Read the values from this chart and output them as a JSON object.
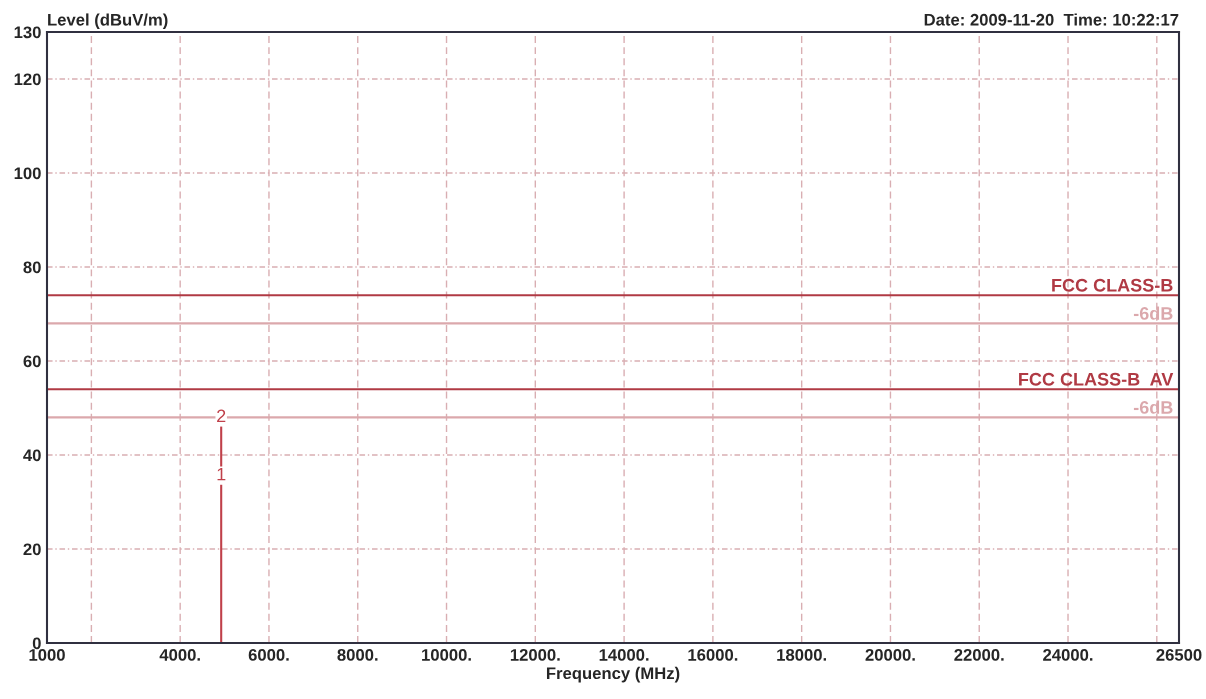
{
  "chart_data": {
    "type": "line",
    "ylabel": "Level (dBuV/m)",
    "xlabel": "Frequency (MHz)",
    "series": [
      {
        "color": "#c0404a",
        "x": [
          4924,
          4924
        ],
        "values": [
          0,
          46.2
        ]
      }
    ],
    "xlim": [
      1000,
      26500
    ],
    "ylim": [
      0,
      130
    ],
    "xticks": [
      1000,
      {
        "value": 2000,
        "label": null
      },
      {
        "value": 4000,
        "label": "4000."
      },
      {
        "value": 6000,
        "label": "6000."
      },
      {
        "value": 8000,
        "label": "8000."
      },
      {
        "value": 10000,
        "label": "10000."
      },
      {
        "value": 12000,
        "label": "12000."
      },
      {
        "value": 14000,
        "label": "14000."
      },
      {
        "value": 16000,
        "label": "16000."
      },
      {
        "value": 18000,
        "label": "18000."
      },
      {
        "value": 20000,
        "label": "20000."
      },
      {
        "value": 22000,
        "label": "22000."
      },
      {
        "value": 24000,
        "label": "24000."
      },
      {
        "value": 26000,
        "label": null
      },
      26500
    ],
    "yticks": [
      0,
      20,
      40,
      60,
      80,
      100,
      120,
      130
    ],
    "ref_lines": [
      {
        "axis": "y",
        "value": 74,
        "label": "FCC CLASS-B",
        "color": "#b03a44"
      },
      {
        "axis": "y",
        "value": 68,
        "label": "-6dB",
        "color": "#dba8ac"
      },
      {
        "axis": "y",
        "value": 54,
        "label": "FCC CLASS-B  AV",
        "color": "#b03a44"
      },
      {
        "axis": "y",
        "value": 48,
        "label": "-6dB",
        "color": "#dba8ac"
      }
    ],
    "annotations": [
      {
        "text": "2",
        "x": 4924,
        "y": 46.2
      },
      {
        "text": "1",
        "x": 4924,
        "y": 37.4
      },
      "Date: 2009-11-20  Time: 10:22:17"
    ],
    "grid": true,
    "legend": false
  }
}
